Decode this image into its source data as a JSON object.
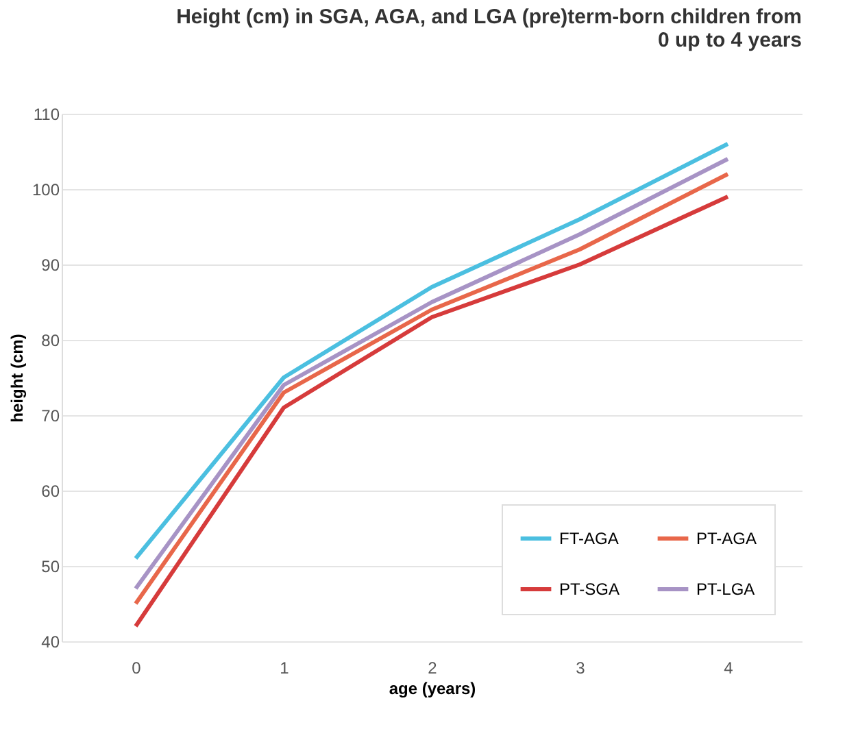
{
  "chart_data": {
    "type": "line",
    "title": "Height (cm) in SGA, AGA, and LGA (pre)term-born children from\n0 up to 4 years",
    "xlabel": "age (years)",
    "ylabel": "height (cm)",
    "categories": [
      "0",
      "1",
      "2",
      "3",
      "4"
    ],
    "series": [
      {
        "name": "FT-AGA",
        "color": "#4bbfe0",
        "values": [
          51,
          75,
          87,
          96,
          106
        ]
      },
      {
        "name": "PT-AGA",
        "color": "#e8674a",
        "values": [
          45,
          73,
          84,
          92,
          102
        ]
      },
      {
        "name": "PT-SGA",
        "color": "#d63b3b",
        "values": [
          42,
          71,
          83,
          90,
          99
        ]
      },
      {
        "name": "PT-LGA",
        "color": "#a793c5",
        "values": [
          47,
          74,
          85,
          94,
          104
        ]
      }
    ],
    "ylim": [
      40,
      110
    ],
    "yticks": [
      40,
      50,
      60,
      70,
      80,
      90,
      100,
      110
    ],
    "grid": "y",
    "legend": "bottom right",
    "marker": "none",
    "line_style": "solid"
  }
}
